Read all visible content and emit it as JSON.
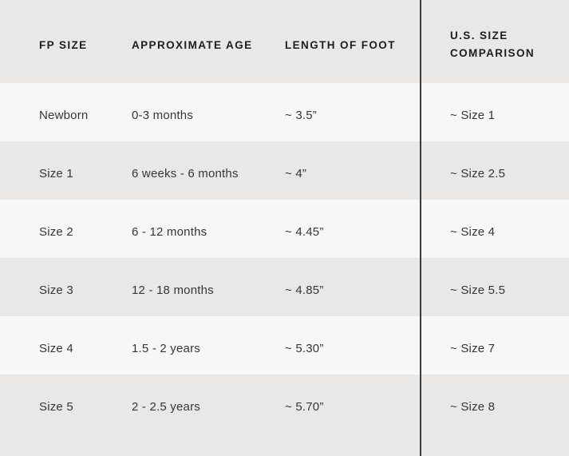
{
  "colors": {
    "header_bg": "#e9e8e7",
    "alt_row_bg": "#e9e8e7",
    "light_row_bg": "#f7f7f8",
    "divider": "#3a3a3a",
    "header_text": "#1d1d1d",
    "body_text": "#363636"
  },
  "header_display": {
    "fp_size": "FP SIZE",
    "age": "APPROXIMATE AGE",
    "foot_length": "LENGTH OF FOOT",
    "us_size_line1": "U.S. SIZE",
    "us_size_line2": "COMPARISON"
  },
  "chart_data": {
    "type": "table",
    "columns": [
      "FP SIZE",
      "APPROXIMATE AGE",
      "LENGTH OF FOOT",
      "U.S. SIZE COMPARISON"
    ],
    "rows": [
      [
        "Newborn",
        "0-3 months",
        "~ 3.5”",
        "~ Size 1"
      ],
      [
        "Size 1",
        "6 weeks - 6 months",
        "~ 4”",
        "~ Size 2.5"
      ],
      [
        "Size 2",
        "6 - 12 months",
        "~ 4.45”",
        "~ Size 4"
      ],
      [
        "Size 3",
        "12 - 18 months",
        "~ 4.85”",
        "~ Size 5.5"
      ],
      [
        "Size 4",
        "1.5 - 2 years",
        "~ 5.30”",
        "~ Size 7"
      ],
      [
        "Size 5",
        "2 - 2.5 years",
        "~ 5.70”",
        "~ Size 8"
      ]
    ]
  }
}
